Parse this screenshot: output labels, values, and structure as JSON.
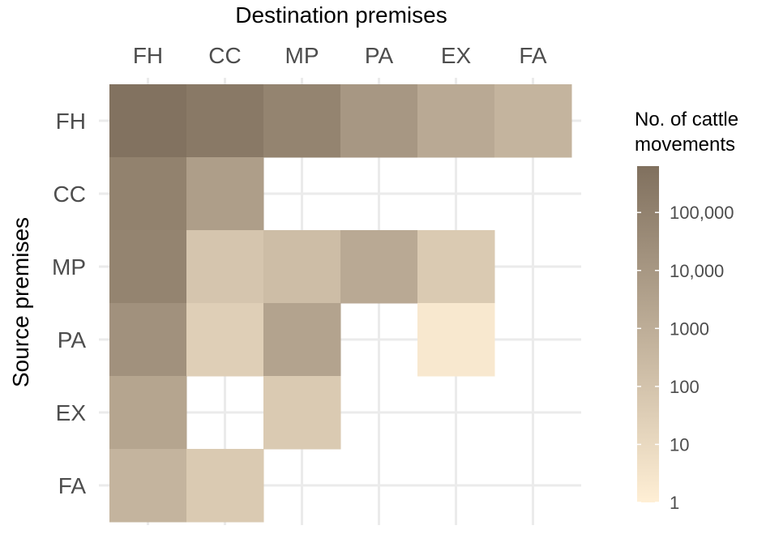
{
  "chart_data": {
    "type": "heatmap",
    "title": "",
    "xlabel": "Destination premises",
    "ylabel": "Source premises",
    "x_categories": [
      "FH",
      "CC",
      "MP",
      "PA",
      "EX",
      "FA"
    ],
    "y_categories": [
      "FH",
      "CC",
      "MP",
      "PA",
      "EX",
      "FA"
    ],
    "scale": "log10",
    "grid": true,
    "legend": {
      "position": "right",
      "title_lines": [
        "No. of cattle",
        "movements"
      ],
      "ticks": [
        {
          "value": 1,
          "label": "1"
        },
        {
          "value": 10,
          "label": "10"
        },
        {
          "value": 100,
          "label": "100"
        },
        {
          "value": 1000,
          "label": "1000"
        },
        {
          "value": 10000,
          "label": "10,000"
        },
        {
          "value": 100000,
          "label": "100,000"
        }
      ],
      "range": [
        1,
        630000
      ],
      "color_low": "#FFEFD5",
      "color_high": "#80705E"
    },
    "cells": [
      {
        "source": "FH",
        "destination": "FH",
        "value": 500000
      },
      {
        "source": "FH",
        "destination": "CC",
        "value": 250000
      },
      {
        "source": "FH",
        "destination": "MP",
        "value": 80000
      },
      {
        "source": "FH",
        "destination": "PA",
        "value": 10000
      },
      {
        "source": "FH",
        "destination": "EX",
        "value": 1500
      },
      {
        "source": "FH",
        "destination": "FA",
        "value": 500
      },
      {
        "source": "CC",
        "destination": "FH",
        "value": 100000
      },
      {
        "source": "CC",
        "destination": "CC",
        "value": 5000
      },
      {
        "source": "MP",
        "destination": "FH",
        "value": 80000
      },
      {
        "source": "MP",
        "destination": "CC",
        "value": 80
      },
      {
        "source": "MP",
        "destination": "MP",
        "value": 200
      },
      {
        "source": "MP",
        "destination": "PA",
        "value": 1500
      },
      {
        "source": "MP",
        "destination": "EX",
        "value": 50
      },
      {
        "source": "PA",
        "destination": "FH",
        "value": 20000
      },
      {
        "source": "PA",
        "destination": "CC",
        "value": 30
      },
      {
        "source": "PA",
        "destination": "MP",
        "value": 3000
      },
      {
        "source": "PA",
        "destination": "EX",
        "value": 2
      },
      {
        "source": "EX",
        "destination": "FH",
        "value": 2500
      },
      {
        "source": "EX",
        "destination": "MP",
        "value": 50
      },
      {
        "source": "FA",
        "destination": "FH",
        "value": 500
      },
      {
        "source": "FA",
        "destination": "CC",
        "value": 50
      }
    ]
  }
}
